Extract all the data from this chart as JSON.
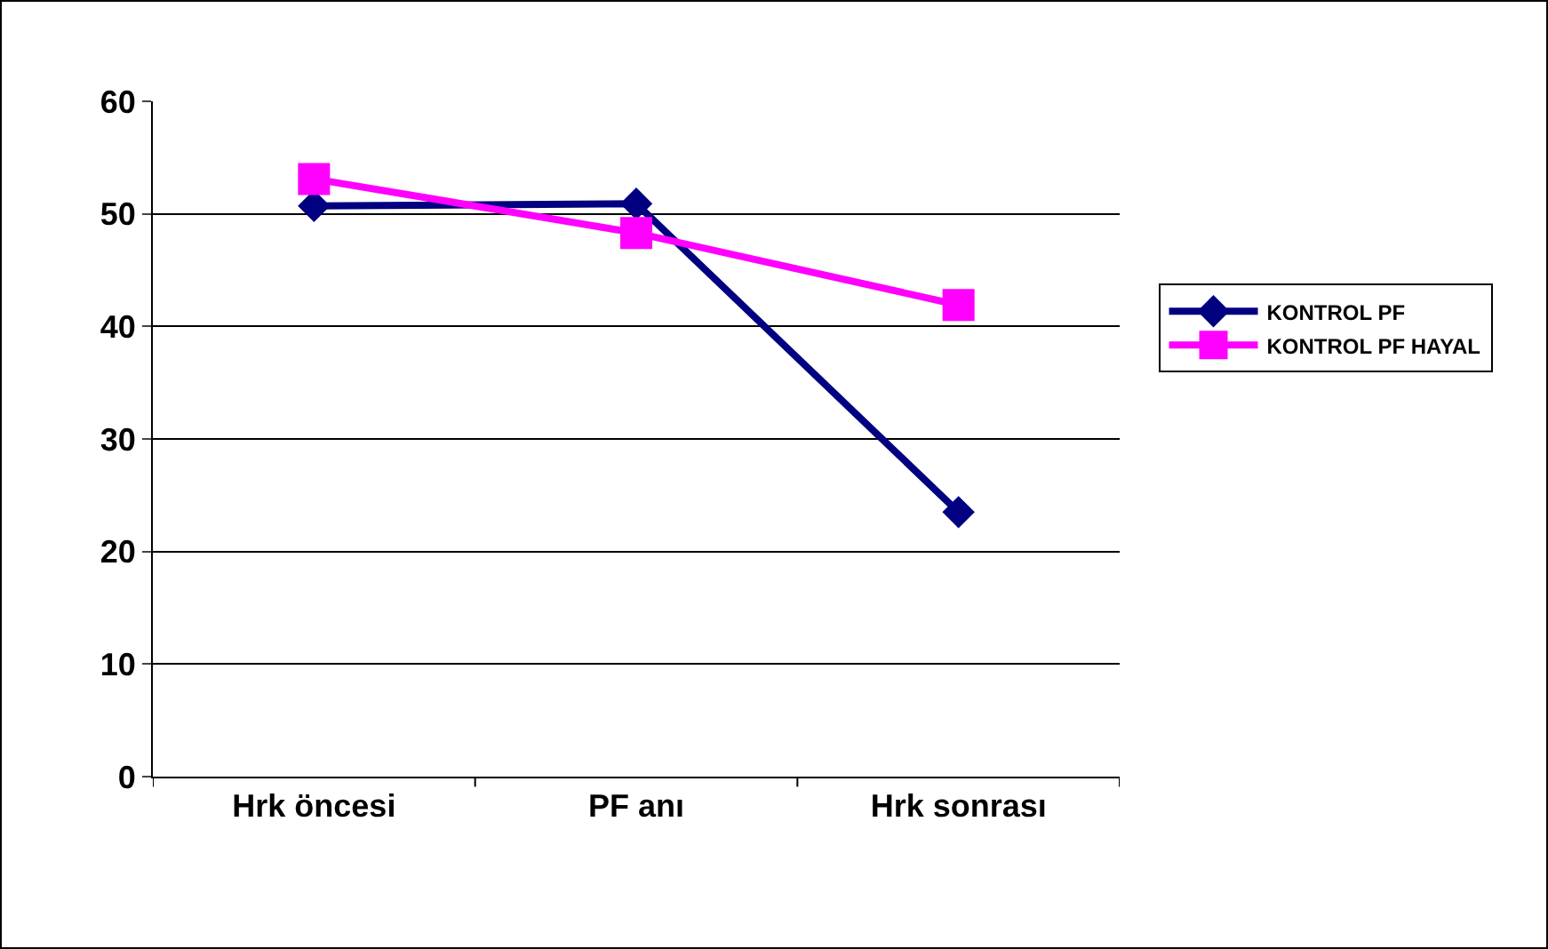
{
  "chart_data": {
    "type": "line",
    "categories": [
      "Hrk öncesi",
      "PF anı",
      "Hrk sonrası"
    ],
    "series": [
      {
        "name": "KONTROL PF",
        "color": "#000080",
        "values": [
          50.7,
          50.9,
          23.5
        ],
        "marker": "diamond"
      },
      {
        "name": "KONTROL PF HAYAL",
        "color": "#ff00ff",
        "values": [
          53.1,
          48.3,
          41.9
        ],
        "marker": "square"
      }
    ],
    "ylim": [
      0,
      60
    ],
    "yticks": [
      0,
      10,
      20,
      30,
      40,
      50,
      60
    ],
    "grid": "y",
    "legend": "right",
    "line_style": "solid"
  }
}
